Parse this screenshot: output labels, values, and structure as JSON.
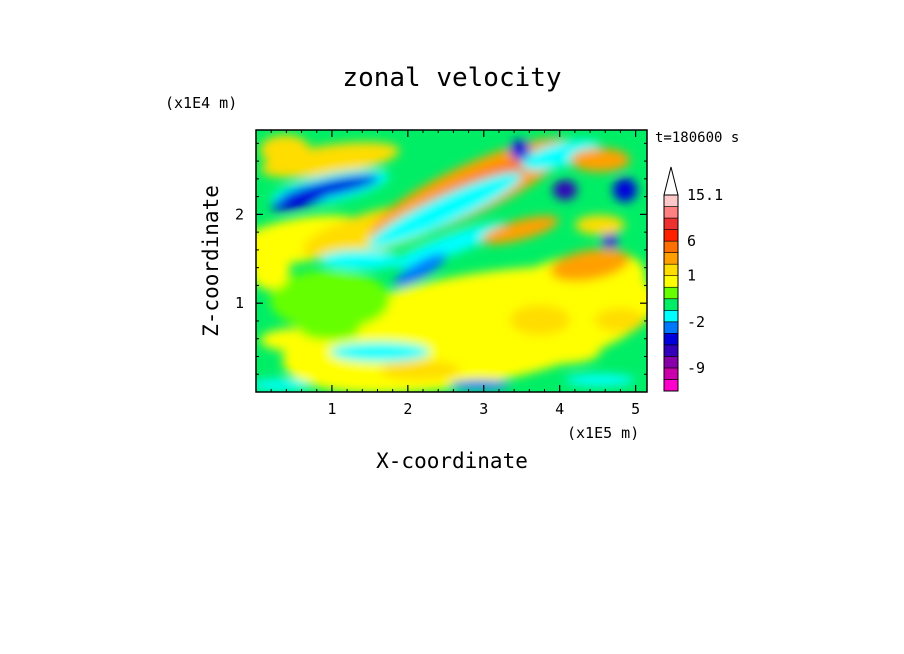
{
  "chart_data": {
    "type": "heatmap",
    "title": "zonal velocity",
    "xlabel": "X-coordinate",
    "ylabel": "Z-coordinate",
    "x_scale_label": "(x1E5 m)",
    "y_scale_label": "(x1E4 m)",
    "time_label": "t=180600 s",
    "xlim": [
      0,
      5.15
    ],
    "ylim": [
      0,
      2.95
    ],
    "x_ticks": [
      1,
      2,
      3,
      4,
      5
    ],
    "y_ticks": [
      1,
      2
    ],
    "colorbar": {
      "levels": [
        -13,
        -11,
        -9,
        -7,
        -5,
        -3,
        -2,
        -1,
        0,
        0.5,
        1,
        2,
        4,
        6,
        8,
        10,
        12,
        15.1
      ],
      "colors": [
        "#ff00cc",
        "#cc00aa",
        "#8800aa",
        "#3300bb",
        "#0000dd",
        "#0077ff",
        "#00ffff",
        "#00ee66",
        "#66ff00",
        "#ffff00",
        "#ffdd00",
        "#ffa000",
        "#ff7000",
        "#ff2000",
        "#ee3030",
        "#ff8080",
        "#ffc8c8"
      ],
      "tick_labels": [
        "15.1",
        "6",
        "1",
        "-2",
        "-9"
      ],
      "tick_values": [
        15.1,
        6,
        1,
        -2,
        -9
      ]
    }
  }
}
